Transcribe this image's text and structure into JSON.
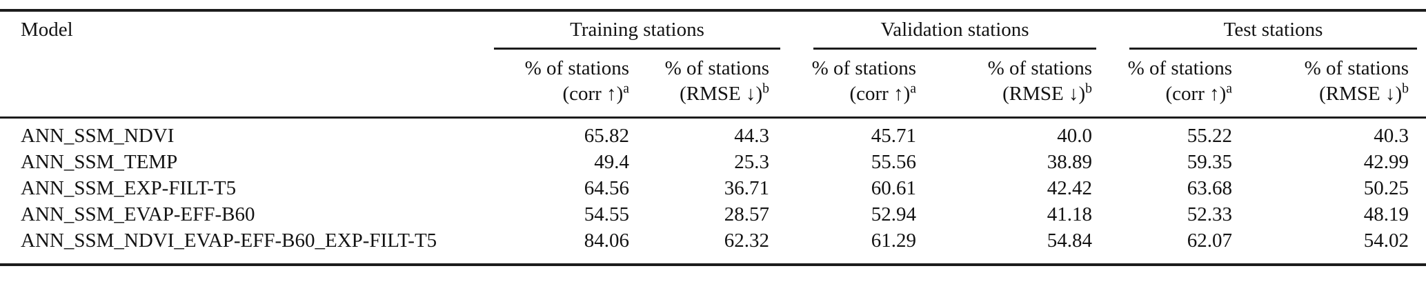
{
  "page": {
    "background": "#ffffff",
    "text_color": "#121212",
    "rule_color": "#1c1c1c"
  },
  "table": {
    "model_header": "Model",
    "groups": [
      {
        "label": "Training stations"
      },
      {
        "label": "Validation stations"
      },
      {
        "label": "Test stations"
      }
    ],
    "subheader": {
      "line1": "% of stations",
      "corr_main": "(corr ↑)",
      "corr_sup": "a",
      "rmse_main": "(RMSE ↓)",
      "rmse_sup": "b"
    },
    "rows": [
      {
        "model": "ANN_SSM_NDVI",
        "values": [
          "65.82",
          "44.3",
          "45.71",
          "40.0",
          "55.22",
          "40.3"
        ]
      },
      {
        "model": "ANN_SSM_TEMP",
        "values": [
          "49.4",
          "25.3",
          "55.56",
          "38.89",
          "59.35",
          "42.99"
        ]
      },
      {
        "model": "ANN_SSM_EXP-FILT-T5",
        "values": [
          "64.56",
          "36.71",
          "60.61",
          "42.42",
          "63.68",
          "50.25"
        ]
      },
      {
        "model": "ANN_SSM_EVAP-EFF-B60",
        "values": [
          "54.55",
          "28.57",
          "52.94",
          "41.18",
          "52.33",
          "48.19"
        ]
      },
      {
        "model": "ANN_SSM_NDVI_EVAP-EFF-B60_EXP-FILT-T5",
        "values": [
          "84.06",
          "62.32",
          "61.29",
          "54.84",
          "62.07",
          "54.02"
        ]
      }
    ]
  }
}
